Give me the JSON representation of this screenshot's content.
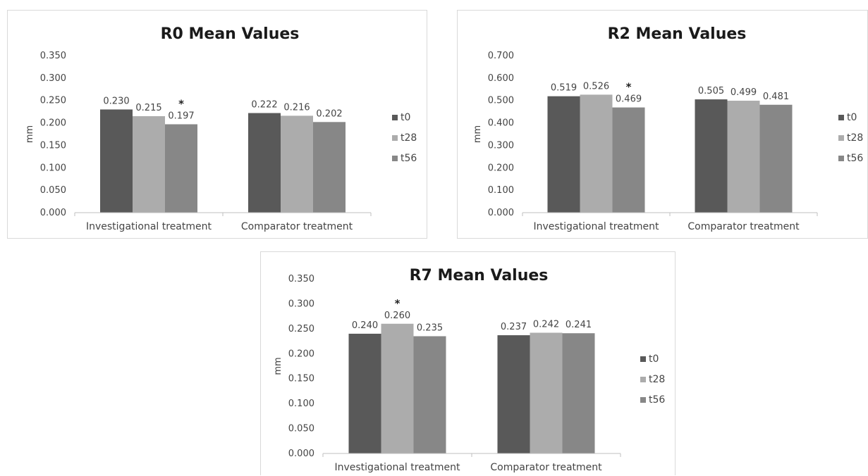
{
  "chart_data": [
    {
      "type": "bar",
      "title": "R0 Mean Values",
      "ylabel": "mm",
      "ylim": [
        0,
        0.35
      ],
      "yticks": [
        "0.000",
        "0.050",
        "0.100",
        "0.150",
        "0.200",
        "0.250",
        "0.300",
        "0.350"
      ],
      "categories": [
        "Investigational treatment",
        "Comparator treatment"
      ],
      "series": [
        {
          "name": "t0",
          "color": "#595959",
          "values": [
            0.23,
            0.222
          ],
          "labels": [
            "0.230",
            "0.222"
          ]
        },
        {
          "name": "t28",
          "color": "#acacac",
          "values": [
            0.215,
            0.216
          ],
          "labels": [
            "0.215",
            "0.216"
          ]
        },
        {
          "name": "t56",
          "color": "#878787",
          "values": [
            0.197,
            0.202
          ],
          "labels": [
            "0.197",
            "0.202"
          ]
        }
      ],
      "significance": [
        {
          "category": 0,
          "series": 2,
          "mark": "*"
        }
      ],
      "legend_position": "right"
    },
    {
      "type": "bar",
      "title": "R2 Mean Values",
      "ylabel": "mm",
      "ylim": [
        0,
        0.7
      ],
      "yticks": [
        "0.000",
        "0.100",
        "0.200",
        "0.300",
        "0.400",
        "0.500",
        "0.600",
        "0.700"
      ],
      "categories": [
        "Investigational treatment",
        "Comparator treatment"
      ],
      "series": [
        {
          "name": "t0",
          "color": "#595959",
          "values": [
            0.519,
            0.505
          ],
          "labels": [
            "0.519",
            "0.505"
          ]
        },
        {
          "name": "t28",
          "color": "#acacac",
          "values": [
            0.526,
            0.499
          ],
          "labels": [
            "0.526",
            "0.499"
          ]
        },
        {
          "name": "t56",
          "color": "#878787",
          "values": [
            0.469,
            0.481
          ],
          "labels": [
            "0.469",
            "0.481"
          ]
        }
      ],
      "significance": [
        {
          "category": 0,
          "series": 2,
          "mark": "*"
        }
      ],
      "legend_position": "right"
    },
    {
      "type": "bar",
      "title": "R7 Mean Values",
      "ylabel": "mm",
      "ylim": [
        0,
        0.35
      ],
      "yticks": [
        "0.000",
        "0.050",
        "0.100",
        "0.150",
        "0.200",
        "0.250",
        "0.300",
        "0.350"
      ],
      "categories": [
        "Investigational treatment",
        "Comparator treatment"
      ],
      "series": [
        {
          "name": "t0",
          "color": "#595959",
          "values": [
            0.24,
            0.237
          ],
          "labels": [
            "0.240",
            "0.237"
          ]
        },
        {
          "name": "t28",
          "color": "#acacac",
          "values": [
            0.26,
            0.242
          ],
          "labels": [
            "0.260",
            "0.242"
          ]
        },
        {
          "name": "t56",
          "color": "#878787",
          "values": [
            0.235,
            0.241
          ],
          "labels": [
            "0.235",
            "0.241"
          ]
        }
      ],
      "significance": [
        {
          "category": 0,
          "series": 1,
          "mark": "*"
        }
      ],
      "legend_position": "right"
    }
  ]
}
